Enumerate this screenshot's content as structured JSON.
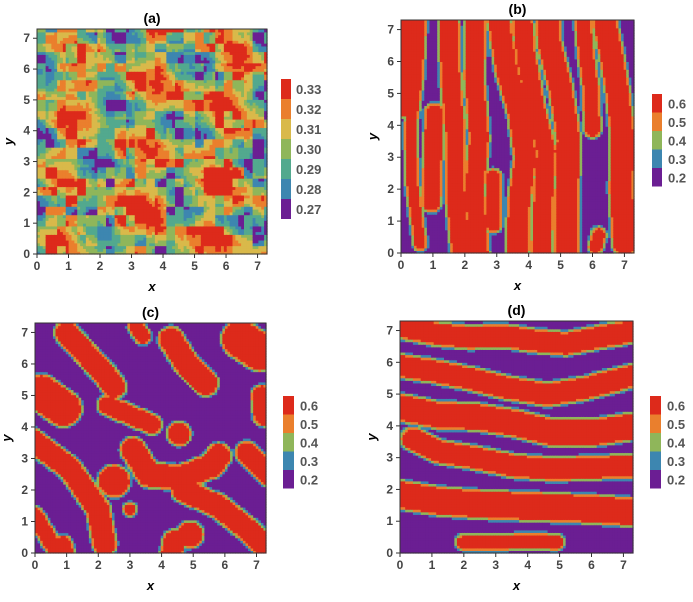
{
  "chart_data": [
    {
      "type": "heatmap",
      "title": "(a)",
      "xlabel": "x",
      "ylabel": "y",
      "xlim": [
        0,
        7.3
      ],
      "ylim": [
        0,
        7.3
      ],
      "xticks": [
        0,
        1,
        2,
        3,
        4,
        5,
        6,
        7
      ],
      "yticks": [
        0,
        1,
        2,
        3,
        4,
        5,
        6,
        7
      ],
      "legend": [
        {
          "label": "0.33",
          "color": "#dd2a1b"
        },
        {
          "label": "0.32",
          "color": "#ea7f2d"
        },
        {
          "label": "0.31",
          "color": "#d9b94a"
        },
        {
          "label": "0.30",
          "color": "#8fb65a"
        },
        {
          "label": "0.29",
          "color": "#52a98e"
        },
        {
          "label": "0.28",
          "color": "#3d86b0"
        },
        {
          "label": "0.27",
          "color": "#6b1e93"
        }
      ],
      "pattern": "noisy"
    },
    {
      "type": "heatmap",
      "title": "(b)",
      "xlabel": "x",
      "ylabel": "y",
      "xlim": [
        0,
        7.3
      ],
      "ylim": [
        0,
        7.3
      ],
      "xticks": [
        0,
        1,
        2,
        3,
        4,
        5,
        6,
        7
      ],
      "yticks": [
        0,
        1,
        2,
        3,
        4,
        5,
        6,
        7
      ],
      "legend": [
        {
          "label": "0.6",
          "color": "#dd2a1b"
        },
        {
          "label": "0.5",
          "color": "#ea7f2d"
        },
        {
          "label": "0.4",
          "color": "#8fb65a"
        },
        {
          "label": "0.3",
          "color": "#3d86b0"
        },
        {
          "label": "0.2",
          "color": "#6b1e93"
        }
      ],
      "pattern": "vertical-stripes"
    },
    {
      "type": "heatmap",
      "title": "(c)",
      "xlabel": "x",
      "ylabel": "y",
      "xlim": [
        0,
        7.3
      ],
      "ylim": [
        0,
        7.3
      ],
      "xticks": [
        0,
        1,
        2,
        3,
        4,
        5,
        6,
        7
      ],
      "yticks": [
        0,
        1,
        2,
        3,
        4,
        5,
        6,
        7
      ],
      "legend": [
        {
          "label": "0.6",
          "color": "#dd2a1b"
        },
        {
          "label": "0.5",
          "color": "#ea7f2d"
        },
        {
          "label": "0.4",
          "color": "#8fb65a"
        },
        {
          "label": "0.3",
          "color": "#3d86b0"
        },
        {
          "label": "0.2",
          "color": "#6b1e93"
        }
      ],
      "pattern": "blobs"
    },
    {
      "type": "heatmap",
      "title": "(d)",
      "xlabel": "x",
      "ylabel": "y",
      "xlim": [
        0,
        7.3
      ],
      "ylim": [
        0,
        7.3
      ],
      "xticks": [
        0,
        1,
        2,
        3,
        4,
        5,
        6,
        7
      ],
      "yticks": [
        0,
        1,
        2,
        3,
        4,
        5,
        6,
        7
      ],
      "legend": [
        {
          "label": "0.6",
          "color": "#dd2a1b"
        },
        {
          "label": "0.5",
          "color": "#ea7f2d"
        },
        {
          "label": "0.4",
          "color": "#8fb65a"
        },
        {
          "label": "0.3",
          "color": "#3d86b0"
        },
        {
          "label": "0.2",
          "color": "#6b1e93"
        }
      ],
      "pattern": "horizontal-stripes"
    }
  ]
}
